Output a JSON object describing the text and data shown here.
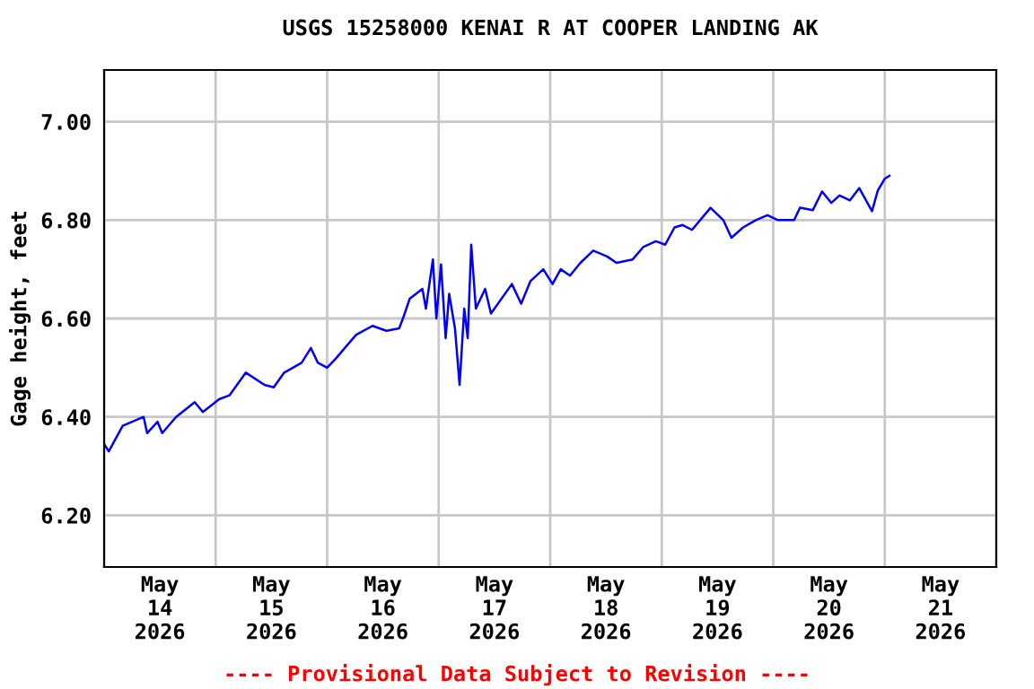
{
  "chart_data": {
    "type": "line",
    "title": "USGS 15258000 KENAI R AT COOPER LANDING AK",
    "ylabel": "Gage height, feet",
    "annotations": [
      "---- Provisional Data Subject to Revision ----"
    ],
    "x": [
      "2026-05-14T00:00",
      "2026-05-14T01:00",
      "2026-05-14T04:00",
      "2026-05-14T08:30",
      "2026-05-14T09:15",
      "2026-05-14T11:30",
      "2026-05-14T12:30",
      "2026-05-14T15:30",
      "2026-05-14T19:30",
      "2026-05-14T21:15",
      "2026-05-15T00:45",
      "2026-05-15T03:00",
      "2026-05-15T06:30",
      "2026-05-15T10:30",
      "2026-05-15T12:30",
      "2026-05-15T14:45",
      "2026-05-15T18:30",
      "2026-05-15T20:30",
      "2026-05-15T22:00",
      "2026-05-16T00:00",
      "2026-05-16T02:00",
      "2026-05-16T04:15",
      "2026-05-16T06:15",
      "2026-05-16T09:45",
      "2026-05-16T12:45",
      "2026-05-16T15:30",
      "2026-05-16T16:30",
      "2026-05-16T17:45",
      "2026-05-16T20:30",
      "2026-05-16T21:15",
      "2026-05-16T22:45",
      "2026-05-16T23:30",
      "2026-05-17T00:30",
      "2026-05-17T01:30",
      "2026-05-17T02:15",
      "2026-05-17T03:30",
      "2026-05-17T04:30",
      "2026-05-17T05:30",
      "2026-05-17T06:15",
      "2026-05-17T07:00",
      "2026-05-17T08:00",
      "2026-05-17T10:00",
      "2026-05-17T11:15",
      "2026-05-17T15:45",
      "2026-05-17T17:45",
      "2026-05-17T19:45",
      "2026-05-17T22:30",
      "2026-05-18T00:30",
      "2026-05-18T02:15",
      "2026-05-18T04:15",
      "2026-05-18T06:30",
      "2026-05-18T09:15",
      "2026-05-18T12:15",
      "2026-05-18T14:15",
      "2026-05-18T17:45",
      "2026-05-18T20:00",
      "2026-05-18T22:45",
      "2026-05-19T00:45",
      "2026-05-19T02:45",
      "2026-05-19T04:30",
      "2026-05-19T06:30",
      "2026-05-19T10:30",
      "2026-05-19T13:15",
      "2026-05-19T15:00",
      "2026-05-19T17:30",
      "2026-05-19T20:15",
      "2026-05-19T22:45",
      "2026-05-20T01:00",
      "2026-05-20T04:30",
      "2026-05-20T05:45",
      "2026-05-20T08:30",
      "2026-05-20T10:30",
      "2026-05-20T12:30",
      "2026-05-20T14:15",
      "2026-05-20T16:30",
      "2026-05-20T18:30",
      "2026-05-20T21:15",
      "2026-05-20T22:30",
      "2026-05-21T00:00",
      "2026-05-21T01:00"
    ],
    "series": [
      {
        "color": "#0000ff",
        "values": [
          6.345,
          6.33,
          6.382,
          6.4,
          6.367,
          6.39,
          6.367,
          6.4,
          6.43,
          6.41,
          6.436,
          6.444,
          6.49,
          6.465,
          6.46,
          6.49,
          6.51,
          6.54,
          6.51,
          6.5,
          6.52,
          6.545,
          6.567,
          6.585,
          6.575,
          6.58,
          6.605,
          6.64,
          6.66,
          6.62,
          6.72,
          6.6,
          6.71,
          6.56,
          6.65,
          6.58,
          6.465,
          6.62,
          6.56,
          6.75,
          6.62,
          6.66,
          6.61,
          6.67,
          6.63,
          6.676,
          6.7,
          6.67,
          6.7,
          6.687,
          6.713,
          6.738,
          6.726,
          6.713,
          6.72,
          6.745,
          6.757,
          6.75,
          6.785,
          6.79,
          6.78,
          6.825,
          6.8,
          6.764,
          6.785,
          6.8,
          6.81,
          6.8,
          6.8,
          6.825,
          6.82,
          6.858,
          6.835,
          6.85,
          6.84,
          6.865,
          6.818,
          6.86,
          6.884,
          6.89
        ]
      }
    ],
    "xlim": [
      "2026-05-14T00:00",
      "2026-05-22T00:00"
    ],
    "xticks": [
      {
        "value": "2026-05-14T00:00",
        "label": null
      },
      {
        "value": "2026-05-14T12:00",
        "label": "May\n14\n2026"
      },
      {
        "value": "2026-05-15T00:00",
        "label": null
      },
      {
        "value": "2026-05-15T12:00",
        "label": "May\n15\n2026"
      },
      {
        "value": "2026-05-16T00:00",
        "label": null
      },
      {
        "value": "2026-05-16T12:00",
        "label": "May\n16\n2026"
      },
      {
        "value": "2026-05-17T00:00",
        "label": null
      },
      {
        "value": "2026-05-17T12:00",
        "label": "May\n17\n2026"
      },
      {
        "value": "2026-05-18T00:00",
        "label": null
      },
      {
        "value": "2026-05-18T12:00",
        "label": "May\n18\n2026"
      },
      {
        "value": "2026-05-19T00:00",
        "label": null
      },
      {
        "value": "2026-05-19T12:00",
        "label": "May\n19\n2026"
      },
      {
        "value": "2026-05-20T00:00",
        "label": null
      },
      {
        "value": "2026-05-20T12:00",
        "label": "May\n20\n2026"
      },
      {
        "value": "2026-05-21T00:00",
        "label": null
      },
      {
        "value": "2026-05-21T12:00",
        "label": "May\n21\n2026"
      },
      {
        "value": "2026-05-22T00:00",
        "label": null
      }
    ],
    "ylim": [
      6.095,
      7.105
    ],
    "yticks": [
      {
        "value": 6.2,
        "label": "6.20"
      },
      {
        "value": 6.4,
        "label": "6.40"
      },
      {
        "value": 6.6,
        "label": "6.60"
      },
      {
        "value": 6.8,
        "label": "6.80"
      },
      {
        "value": 7.0,
        "label": "7.00"
      }
    ],
    "grid": true,
    "marker": "none",
    "line_style": "solid"
  }
}
